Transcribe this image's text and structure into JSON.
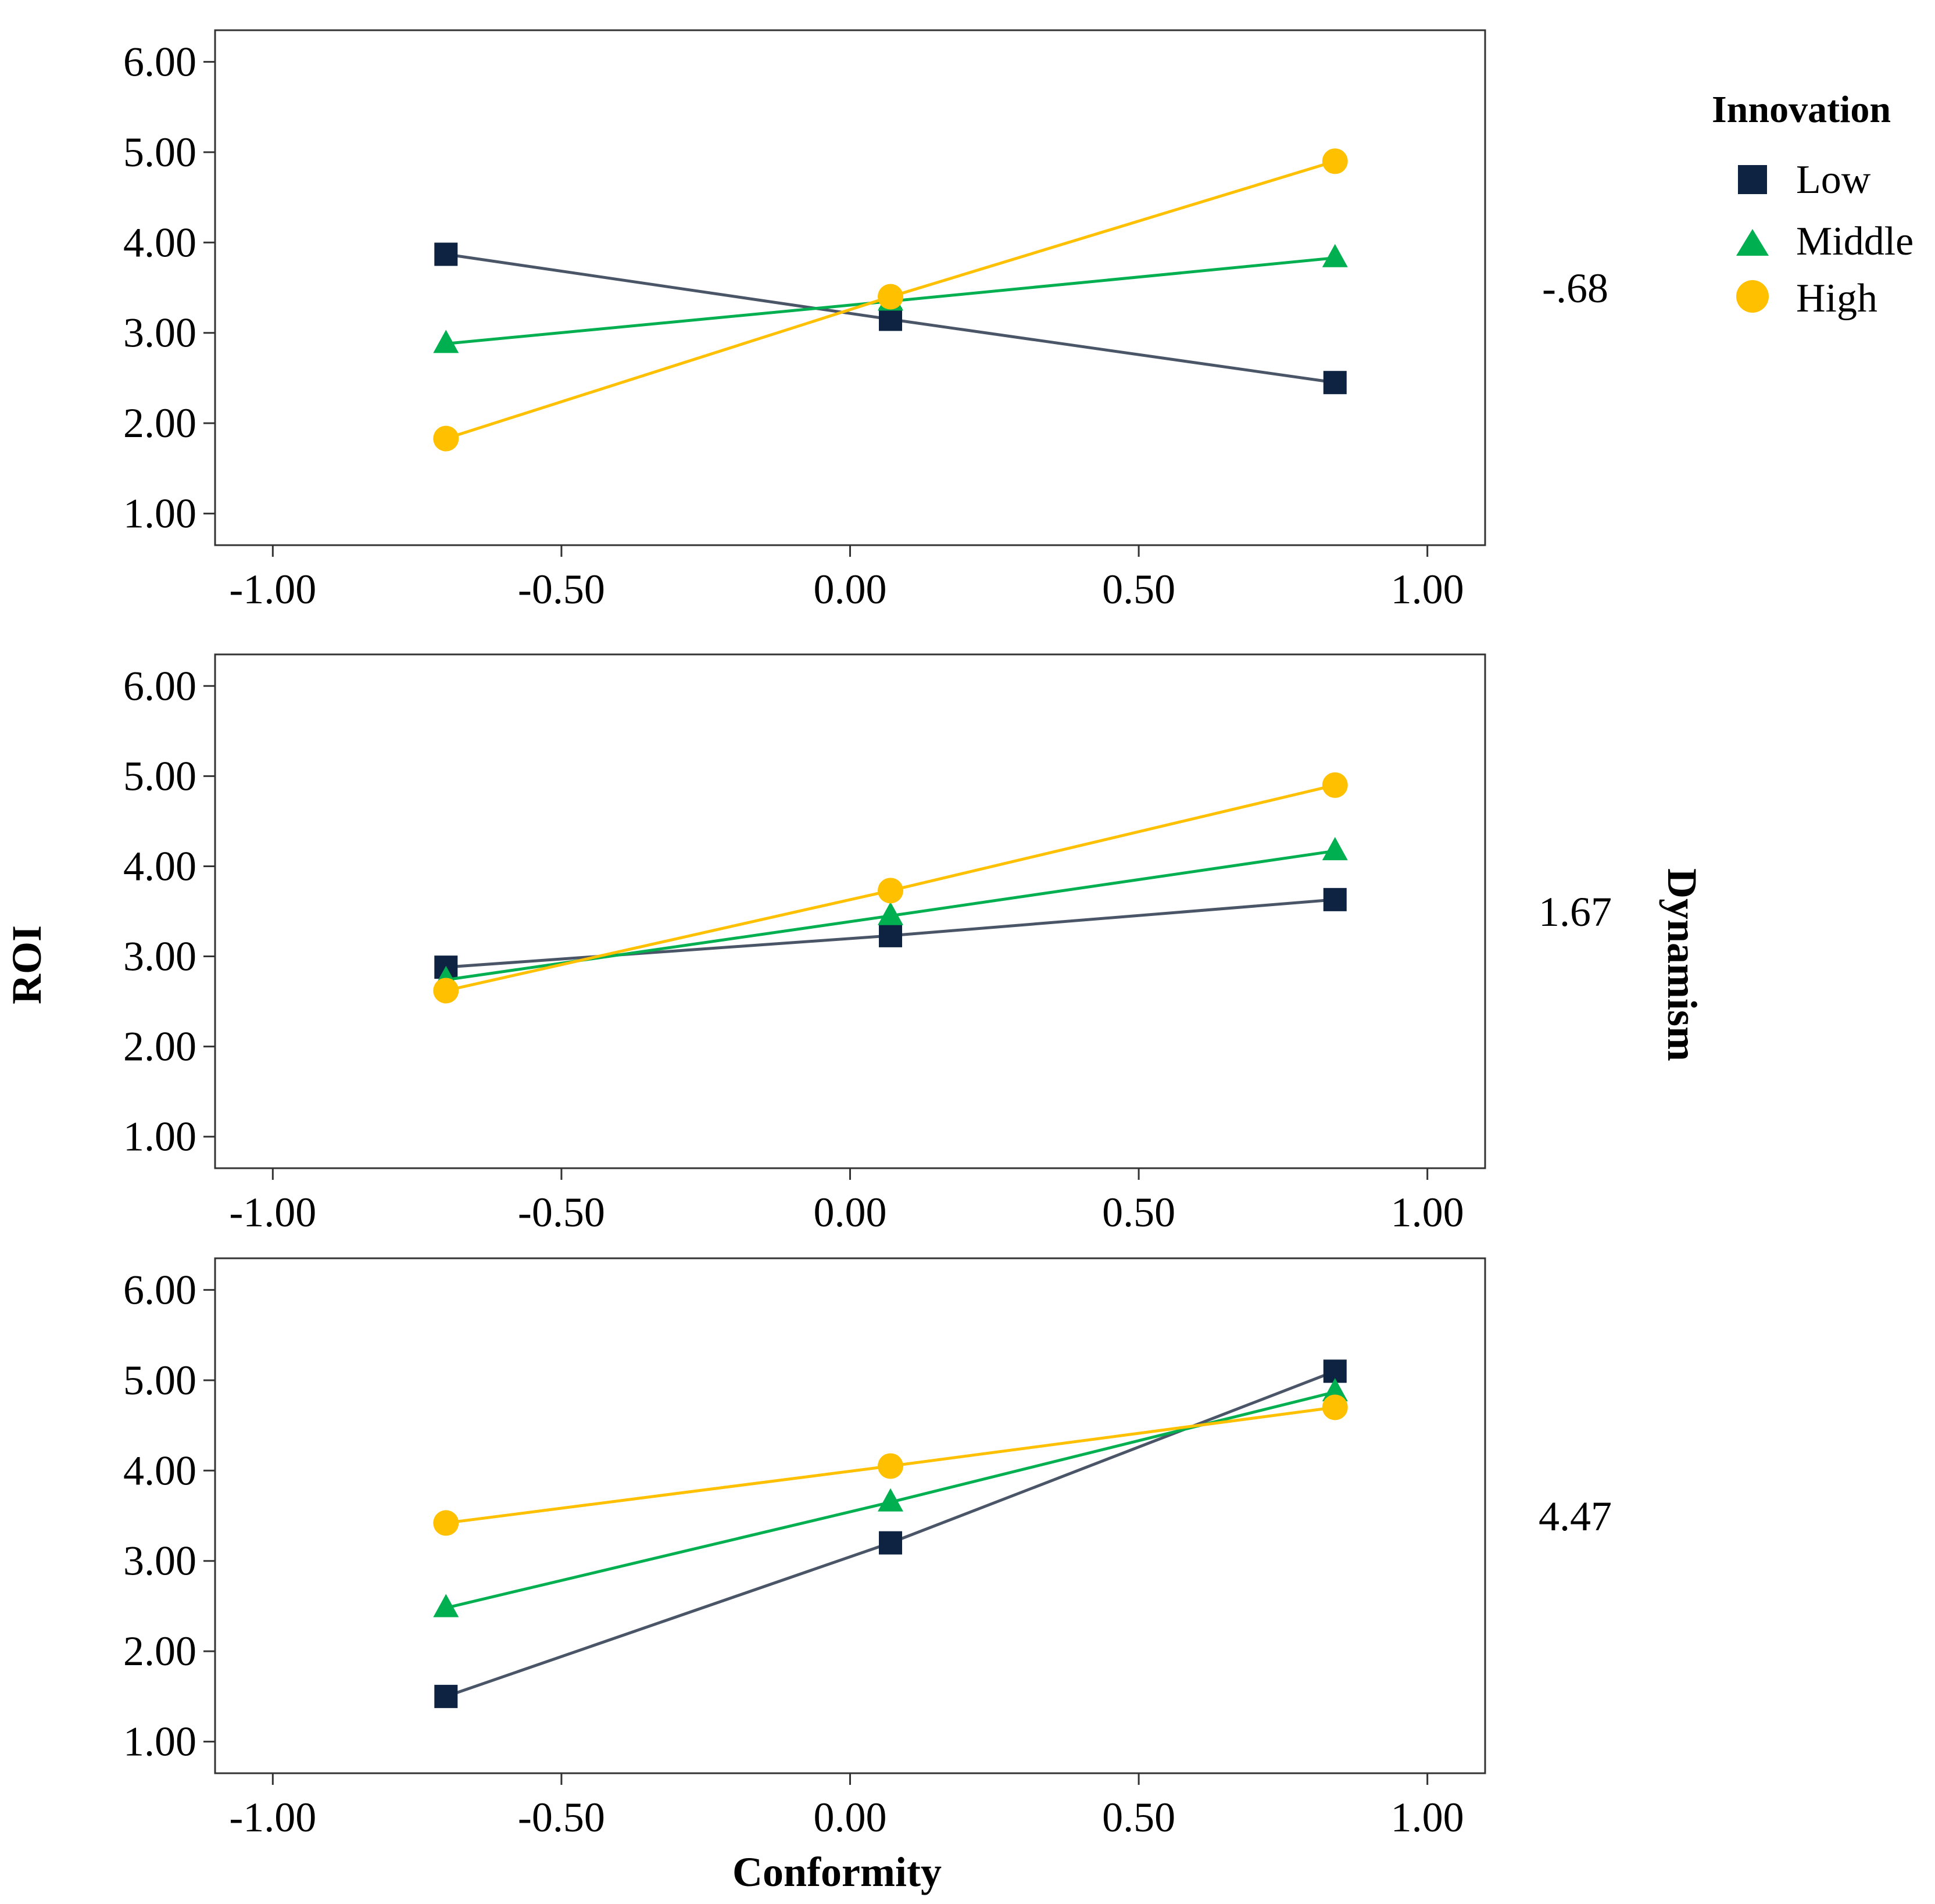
{
  "chart_data": {
    "type": "line",
    "xlabel": "Conformity",
    "ylabel": "ROI",
    "facet_label": "Dynamism",
    "xlim": [
      -1.1,
      1.1
    ],
    "ylim": [
      0.65,
      6.35
    ],
    "x_ticks": [
      "-1.00",
      "-0.50",
      "0.00",
      "0.50",
      "1.00"
    ],
    "x_tick_values": [
      -1.0,
      -0.5,
      0.0,
      0.5,
      1.0
    ],
    "y_ticks": [
      "1.00",
      "2.00",
      "3.00",
      "4.00",
      "5.00",
      "6.00"
    ],
    "y_tick_values": [
      1,
      2,
      3,
      4,
      5,
      6
    ],
    "legend": {
      "title": "Innovation",
      "placement": "top-right",
      "entries": [
        "Low",
        "Middle",
        "High"
      ]
    },
    "series_style": [
      {
        "name": "Low",
        "marker": "square",
        "color": "#0d2341",
        "line_color": "#4a5668"
      },
      {
        "name": "Middle",
        "marker": "triangle",
        "color": "#00b050",
        "line_color": "#00b050"
      },
      {
        "name": "High",
        "marker": "circle",
        "color": "#ffc000",
        "line_color": "#ffc000"
      }
    ],
    "x": [
      -0.7,
      0.07,
      0.84
    ],
    "panels": [
      {
        "dynamism": "-.68",
        "series": [
          {
            "name": "Low",
            "values": [
              3.87,
              3.15,
              2.45
            ]
          },
          {
            "name": "Middle",
            "values": [
              2.88,
              3.35,
              3.83
            ]
          },
          {
            "name": "High",
            "values": [
              1.83,
              3.4,
              4.9
            ]
          }
        ]
      },
      {
        "dynamism": "1.67",
        "series": [
          {
            "name": "Low",
            "values": [
              2.88,
              3.23,
              3.63
            ]
          },
          {
            "name": "Middle",
            "values": [
              2.74,
              3.45,
              4.17
            ]
          },
          {
            "name": "High",
            "values": [
              2.62,
              3.73,
              4.9
            ]
          }
        ]
      },
      {
        "dynamism": "4.47",
        "series": [
          {
            "name": "Low",
            "values": [
              1.5,
              3.2,
              5.1
            ]
          },
          {
            "name": "Middle",
            "values": [
              2.48,
              3.65,
              4.87
            ]
          },
          {
            "name": "High",
            "values": [
              3.42,
              4.05,
              4.7
            ]
          }
        ]
      }
    ]
  }
}
